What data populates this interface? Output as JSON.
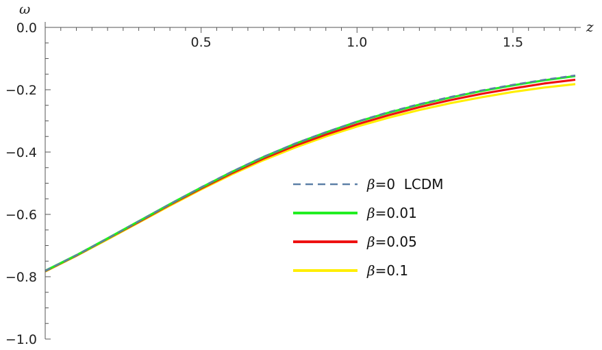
{
  "chart_data": {
    "type": "line",
    "xlabel": "z",
    "ylabel": "ω",
    "xlim": [
      0,
      1.7
    ],
    "ylim": [
      -1.0,
      0.0
    ],
    "x_ticks": [
      0.5,
      1.0,
      1.5
    ],
    "x_tick_labels": [
      "0.5",
      "1.0",
      "1.5"
    ],
    "y_ticks": [
      0.0,
      -0.2,
      -0.4,
      -0.6,
      -0.8,
      -1.0
    ],
    "y_tick_labels": [
      "0.0",
      "-0.2",
      "-0.4",
      "-0.6",
      "-0.8",
      "-1.0"
    ],
    "legend_position": "center-right",
    "x": [
      0,
      0.1,
      0.2,
      0.3,
      0.4,
      0.5,
      0.6,
      0.7,
      0.8,
      0.9,
      1.0,
      1.1,
      1.2,
      1.3,
      1.4,
      1.5,
      1.6,
      1.7
    ],
    "series": [
      {
        "name": "β=0  LCDM",
        "color": "#5b7fa6",
        "dash": true,
        "values": [
          -0.781,
          -0.731,
          -0.677,
          -0.622,
          -0.567,
          -0.513,
          -0.462,
          -0.415,
          -0.373,
          -0.336,
          -0.302,
          -0.272,
          -0.246,
          -0.223,
          -0.202,
          -0.184,
          -0.168,
          -0.154
        ]
      },
      {
        "name": "β=0.01",
        "color": "#22ee22",
        "dash": false,
        "values": [
          -0.781,
          -0.731,
          -0.677,
          -0.622,
          -0.567,
          -0.514,
          -0.463,
          -0.416,
          -0.374,
          -0.337,
          -0.303,
          -0.274,
          -0.248,
          -0.225,
          -0.204,
          -0.186,
          -0.17,
          -0.156
        ]
      },
      {
        "name": "β=0.05",
        "color": "#ee1111",
        "dash": false,
        "values": [
          -0.782,
          -0.732,
          -0.678,
          -0.624,
          -0.569,
          -0.517,
          -0.467,
          -0.421,
          -0.38,
          -0.344,
          -0.311,
          -0.282,
          -0.256,
          -0.233,
          -0.213,
          -0.196,
          -0.18,
          -0.168
        ]
      },
      {
        "name": "β=0.1",
        "color": "#ffee00",
        "dash": false,
        "values": [
          -0.783,
          -0.733,
          -0.68,
          -0.626,
          -0.572,
          -0.52,
          -0.471,
          -0.426,
          -0.386,
          -0.35,
          -0.318,
          -0.29,
          -0.265,
          -0.243,
          -0.224,
          -0.207,
          -0.193,
          -0.182
        ]
      }
    ]
  }
}
